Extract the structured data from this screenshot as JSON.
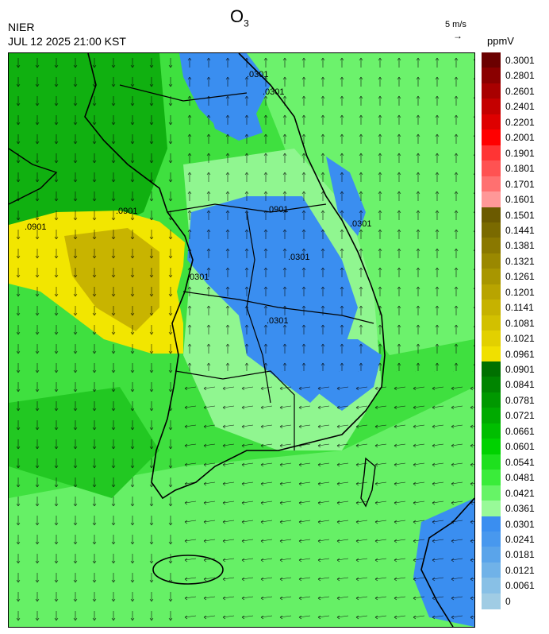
{
  "header": {
    "org": "NIER",
    "datetime": "JUL 12 2025 21:00 KST",
    "title_main": "O",
    "title_sub": "3",
    "ref_vector_label": "5 m/s",
    "ref_vector_arrow": "→",
    "unit": "ppmV"
  },
  "map": {
    "contour_labels": [
      ".0301",
      ".0301",
      ".0901",
      ".0901",
      ".0901",
      ".0301",
      ".0301",
      ".0301",
      ".0301"
    ]
  },
  "legend": {
    "items": [
      {
        "label": "0.3001",
        "color": "#6b0000"
      },
      {
        "label": "0.2801",
        "color": "#8a0000"
      },
      {
        "label": "0.2601",
        "color": "#a80000"
      },
      {
        "label": "0.2401",
        "color": "#c40000"
      },
      {
        "label": "0.2201",
        "color": "#de0000"
      },
      {
        "label": "0.2001",
        "color": "#ff0000"
      },
      {
        "label": "0.1901",
        "color": "#ff3434"
      },
      {
        "label": "0.1801",
        "color": "#ff5252"
      },
      {
        "label": "0.1701",
        "color": "#ff7070"
      },
      {
        "label": "0.1601",
        "color": "#ff9898"
      },
      {
        "label": "0.1501",
        "color": "#6b5a00"
      },
      {
        "label": "0.1441",
        "color": "#7a6a00"
      },
      {
        "label": "0.1381",
        "color": "#8a7800"
      },
      {
        "label": "0.1321",
        "color": "#9a8800"
      },
      {
        "label": "0.1261",
        "color": "#a89600"
      },
      {
        "label": "0.1201",
        "color": "#b8a400"
      },
      {
        "label": "0.1141",
        "color": "#c6b200"
      },
      {
        "label": "0.1081",
        "color": "#d2c000"
      },
      {
        "label": "0.1021",
        "color": "#e2d000"
      },
      {
        "label": "0.0961",
        "color": "#f0e000"
      },
      {
        "label": "0.0901",
        "color": "#007000"
      },
      {
        "label": "0.0841",
        "color": "#008400"
      },
      {
        "label": "0.0781",
        "color": "#009800"
      },
      {
        "label": "0.0721",
        "color": "#00aa00"
      },
      {
        "label": "0.0661",
        "color": "#00be00"
      },
      {
        "label": "0.0601",
        "color": "#00d200"
      },
      {
        "label": "0.0541",
        "color": "#1ee01e"
      },
      {
        "label": "0.0481",
        "color": "#3aec3a"
      },
      {
        "label": "0.0421",
        "color": "#66f466"
      },
      {
        "label": "0.0361",
        "color": "#98fa98"
      },
      {
        "label": "0.0301",
        "color": "#3a8ef0"
      },
      {
        "label": "0.0241",
        "color": "#4898ee"
      },
      {
        "label": "0.0181",
        "color": "#5aa4ea"
      },
      {
        "label": "0.0121",
        "color": "#70b2e8"
      },
      {
        "label": "0.0061",
        "color": "#88c0e6"
      },
      {
        "label": "0",
        "color": "#a0cce4"
      }
    ]
  }
}
